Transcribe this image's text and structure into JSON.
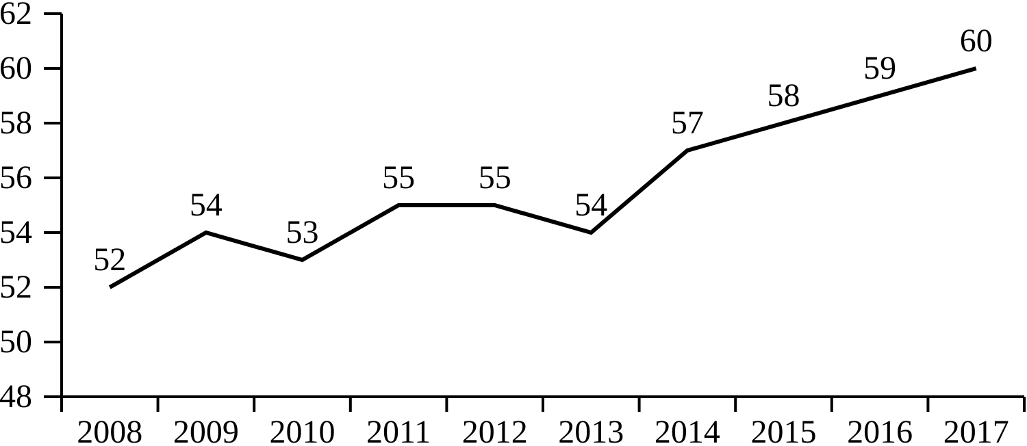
{
  "chart_data": {
    "type": "line",
    "title": "",
    "xlabel": "",
    "ylabel": "",
    "categories": [
      "2008",
      "2009",
      "2010",
      "2011",
      "2012",
      "2013",
      "2014",
      "2015",
      "2016",
      "2017"
    ],
    "values": [
      52,
      54,
      53,
      55,
      55,
      54,
      57,
      58,
      59,
      60
    ],
    "data_labels": [
      "52",
      "54",
      "53",
      "55",
      "55",
      "54",
      "57",
      "58",
      "59",
      "60"
    ],
    "ylim": [
      48,
      62
    ],
    "ytick_step": 2,
    "yticks": [
      48,
      50,
      52,
      54,
      56,
      58,
      60,
      62
    ],
    "ytick_labels": [
      "48",
      "50",
      "52",
      "54",
      "56",
      "58",
      "60",
      "62"
    ],
    "grid": false,
    "legend": false,
    "colors": {
      "line": "#000000",
      "axis": "#000000",
      "text": "#000000",
      "background": "#ffffff"
    }
  }
}
